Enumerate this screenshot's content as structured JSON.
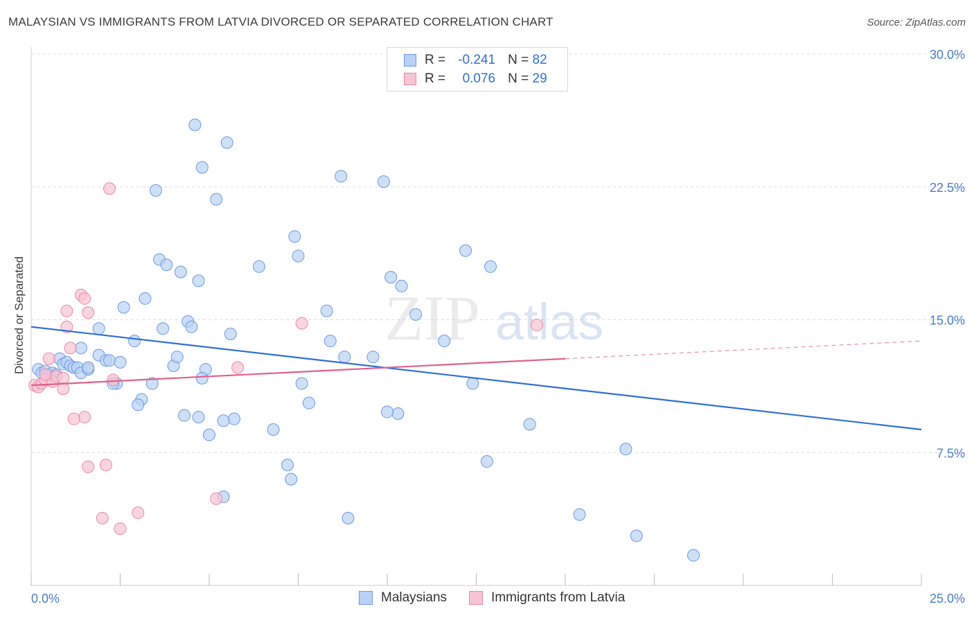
{
  "title": "MALAYSIAN VS IMMIGRANTS FROM LATVIA DIVORCED OR SEPARATED CORRELATION CHART",
  "source": "Source: ZipAtlas.com",
  "watermark": {
    "zip": "ZIP",
    "atlas": "atlas"
  },
  "legend": {
    "series1": {
      "r_label": "R =",
      "r_value": "-0.241",
      "n_label": "N =",
      "n_value": "82"
    },
    "series2": {
      "r_label": "R =",
      "r_value": "0.076",
      "n_label": "N =",
      "n_value": "29"
    }
  },
  "colors": {
    "blue_fill": "#b9d1f5",
    "blue_stroke": "#6c9ae0",
    "blue_line": "#2f6fd4",
    "pink_fill": "#f8c3d3",
    "pink_stroke": "#e88aa8",
    "pink_line": "#e0608a",
    "grid": "#dddddd",
    "axis_text": "#4a7cc7"
  },
  "chart_data": {
    "type": "scatter",
    "title": "MALAYSIAN VS IMMIGRANTS FROM LATVIA DIVORCED OR SEPARATED CORRELATION CHART",
    "xlabel": "",
    "ylabel": "Divorced or Separated",
    "xlim": [
      0,
      25
    ],
    "ylim": [
      0,
      30
    ],
    "x_tick_labels": [
      "0.0%",
      "25.0%"
    ],
    "y_ticks": [
      7.5,
      15.0,
      22.5,
      30.0
    ],
    "y_tick_labels": [
      "7.5%",
      "15.0%",
      "22.5%",
      "30.0%"
    ],
    "legend_position": "bottom",
    "series": [
      {
        "name": "Malaysians",
        "points": [
          [
            0.2,
            12.2
          ],
          [
            0.3,
            12.0
          ],
          [
            0.4,
            12.1
          ],
          [
            0.5,
            11.9
          ],
          [
            0.6,
            12.0
          ],
          [
            0.7,
            11.9
          ],
          [
            0.8,
            12.8
          ],
          [
            0.9,
            12.5
          ],
          [
            1.0,
            12.6
          ],
          [
            1.1,
            12.4
          ],
          [
            1.2,
            12.3
          ],
          [
            1.3,
            12.3
          ],
          [
            1.4,
            12.0
          ],
          [
            1.6,
            12.2
          ],
          [
            1.9,
            13.0
          ],
          [
            2.1,
            12.7
          ],
          [
            2.2,
            12.7
          ],
          [
            2.5,
            12.6
          ],
          [
            1.4,
            13.4
          ],
          [
            1.6,
            12.3
          ],
          [
            1.9,
            14.5
          ],
          [
            2.4,
            11.4
          ],
          [
            2.6,
            15.7
          ],
          [
            2.9,
            13.8
          ],
          [
            3.2,
            16.2
          ],
          [
            3.4,
            11.4
          ],
          [
            3.5,
            22.3
          ],
          [
            3.6,
            18.4
          ],
          [
            3.7,
            14.5
          ],
          [
            3.8,
            18.1
          ],
          [
            4.0,
            12.4
          ],
          [
            4.1,
            12.9
          ],
          [
            4.2,
            17.7
          ],
          [
            4.4,
            14.9
          ],
          [
            4.5,
            14.6
          ],
          [
            4.7,
            17.2
          ],
          [
            4.9,
            12.2
          ],
          [
            4.8,
            11.7
          ],
          [
            4.6,
            26.0
          ],
          [
            4.8,
            23.6
          ],
          [
            5.2,
            21.8
          ],
          [
            5.5,
            25.0
          ],
          [
            5.6,
            14.2
          ],
          [
            5.7,
            9.4
          ],
          [
            6.4,
            18.0
          ],
          [
            6.8,
            8.8
          ],
          [
            7.4,
            19.7
          ],
          [
            7.5,
            18.6
          ],
          [
            7.6,
            11.4
          ],
          [
            7.8,
            10.3
          ],
          [
            8.3,
            15.5
          ],
          [
            8.4,
            13.8
          ],
          [
            8.7,
            23.1
          ],
          [
            8.8,
            12.9
          ],
          [
            9.6,
            12.9
          ],
          [
            9.9,
            22.8
          ],
          [
            10.1,
            17.4
          ],
          [
            10.3,
            9.7
          ],
          [
            10.4,
            16.9
          ],
          [
            10.8,
            15.3
          ],
          [
            11.6,
            13.8
          ],
          [
            12.2,
            18.9
          ],
          [
            12.4,
            11.4
          ],
          [
            12.8,
            7.0
          ],
          [
            12.9,
            18.0
          ],
          [
            14.0,
            9.1
          ],
          [
            15.4,
            4.0
          ],
          [
            16.7,
            7.7
          ],
          [
            17.0,
            2.8
          ],
          [
            18.6,
            1.7
          ],
          [
            2.3,
            11.4
          ],
          [
            3.1,
            10.5
          ],
          [
            3.0,
            10.2
          ],
          [
            4.3,
            9.6
          ],
          [
            4.7,
            9.5
          ],
          [
            5.0,
            8.5
          ],
          [
            5.4,
            9.3
          ],
          [
            7.2,
            6.8
          ],
          [
            7.3,
            6.0
          ],
          [
            8.9,
            3.8
          ],
          [
            10.0,
            9.8
          ],
          [
            5.4,
            5.0
          ]
        ],
        "trend": {
          "x": [
            0,
            25
          ],
          "y": [
            14.6,
            8.8
          ]
        }
      },
      {
        "name": "Immigrants from Latvia",
        "points": [
          [
            0.1,
            11.3
          ],
          [
            0.2,
            11.2
          ],
          [
            0.3,
            11.4
          ],
          [
            0.4,
            11.6
          ],
          [
            0.5,
            12.8
          ],
          [
            0.6,
            11.5
          ],
          [
            0.7,
            11.8
          ],
          [
            0.9,
            11.7
          ],
          [
            1.1,
            13.4
          ],
          [
            1.0,
            14.6
          ],
          [
            1.0,
            15.5
          ],
          [
            1.4,
            16.4
          ],
          [
            1.5,
            16.2
          ],
          [
            1.6,
            15.4
          ],
          [
            1.5,
            9.5
          ],
          [
            1.2,
            9.4
          ],
          [
            1.6,
            6.7
          ],
          [
            2.1,
            6.8
          ],
          [
            2.2,
            22.4
          ],
          [
            2.3,
            11.6
          ],
          [
            2.0,
            3.8
          ],
          [
            2.5,
            3.2
          ],
          [
            3.0,
            4.1
          ],
          [
            5.2,
            4.9
          ],
          [
            5.8,
            12.3
          ],
          [
            7.6,
            14.8
          ],
          [
            14.2,
            14.7
          ],
          [
            0.9,
            11.1
          ],
          [
            0.4,
            11.9
          ]
        ],
        "trend": {
          "x": [
            0,
            15
          ],
          "y": [
            11.3,
            12.8
          ]
        },
        "trend_dashed": {
          "x": [
            15,
            25
          ],
          "y": [
            12.8,
            13.8
          ]
        }
      }
    ]
  },
  "bottom_legend": {
    "item1": "Malaysians",
    "item2": "Immigrants from Latvia"
  }
}
